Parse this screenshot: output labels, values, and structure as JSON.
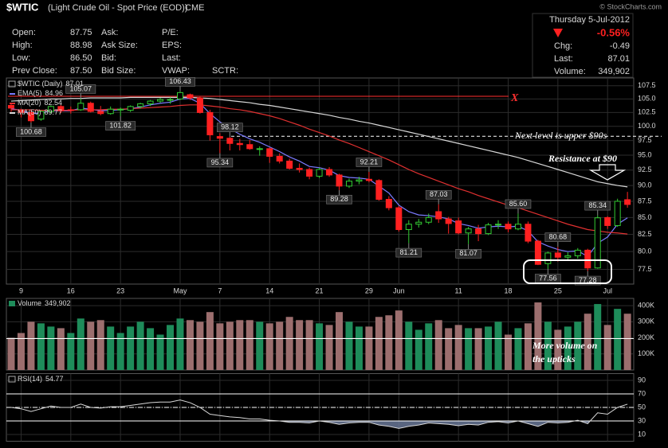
{
  "header": {
    "symbol": "$WTIC",
    "description": "(Light Crude Oil - Spot Price (EOD))",
    "exchange": "CME",
    "source": "© StockCharts.com",
    "date": "Thursday 5-Jul-2012",
    "quote": [
      [
        "Open:",
        "87.75"
      ],
      [
        "High:",
        "88.98"
      ],
      [
        "Low:",
        "86.50"
      ],
      [
        "Prev Close:",
        "87.50"
      ]
    ],
    "bid_ask": [
      "Ask:",
      "Ask Size:",
      "Bid:",
      "Bid Size:"
    ],
    "fundamentals": [
      "P/E:",
      "EPS:",
      "Last:",
      "VWAP:"
    ],
    "sctr": "SCTR:",
    "change_pct": "-0.56%",
    "change_label": "Chg:",
    "change": "-0.49",
    "last_label": "Last:",
    "last": "87.01",
    "volume_label": "Volume:",
    "volume": "349,902"
  },
  "chart_data": {
    "type": "candlestick",
    "categories": [
      "2012-04-05",
      "2012-04-09",
      "2012-04-10",
      "2012-04-11",
      "2012-04-12",
      "2012-04-13",
      "2012-04-16",
      "2012-04-17",
      "2012-04-18",
      "2012-04-19",
      "2012-04-20",
      "2012-04-23",
      "2012-04-24",
      "2012-04-25",
      "2012-04-26",
      "2012-04-27",
      "2012-04-30",
      "2012-05-01",
      "2012-05-02",
      "2012-05-03",
      "2012-05-04",
      "2012-05-07",
      "2012-05-08",
      "2012-05-09",
      "2012-05-10",
      "2012-05-11",
      "2012-05-14",
      "2012-05-15",
      "2012-05-16",
      "2012-05-17",
      "2012-05-18",
      "2012-05-21",
      "2012-05-22",
      "2012-05-23",
      "2012-05-24",
      "2012-05-25",
      "2012-05-29",
      "2012-05-30",
      "2012-05-31",
      "2012-06-01",
      "2012-06-04",
      "2012-06-05",
      "2012-06-06",
      "2012-06-07",
      "2012-06-08",
      "2012-06-11",
      "2012-06-12",
      "2012-06-13",
      "2012-06-14",
      "2012-06-15",
      "2012-06-18",
      "2012-06-19",
      "2012-06-20",
      "2012-06-21",
      "2012-06-22",
      "2012-06-25",
      "2012-06-26",
      "2012-06-27",
      "2012-06-28",
      "2012-06-29",
      "2012-07-02",
      "2012-07-03",
      "2012-07-05"
    ],
    "xticks": [
      {
        "value": "2012-04-09",
        "label": "9"
      },
      {
        "value": "2012-04-16",
        "label": "16"
      },
      {
        "value": "2012-04-23",
        "label": "23"
      },
      {
        "value": "2012-05-01",
        "label": "May"
      },
      {
        "value": "2012-05-07",
        "label": "7"
      },
      {
        "value": "2012-05-14",
        "label": "14"
      },
      {
        "value": "2012-05-21",
        "label": "21"
      },
      {
        "value": "2012-05-29",
        "label": "29"
      },
      {
        "value": "2012-06-01",
        "label": "Jun"
      },
      {
        "value": "2012-06-11",
        "label": "11"
      },
      {
        "value": "2012-06-18",
        "label": "18"
      },
      {
        "value": "2012-06-25",
        "label": "25"
      },
      {
        "value": "2012-07-02",
        "label": "Jul"
      }
    ],
    "price": {
      "type": "candlestick",
      "log": true,
      "grid": true,
      "ylim": [
        75.5,
        109.0
      ],
      "yticks": [
        107.5,
        {
          "value": 105,
          "label": "105.0"
        },
        102.5,
        {
          "value": 100,
          "label": "100.0"
        },
        97.5,
        {
          "value": 95,
          "label": "95.0"
        },
        92.5,
        {
          "value": 90,
          "label": "90.0"
        },
        87.5,
        {
          "value": 85,
          "label": "85.0"
        },
        82.5,
        {
          "value": 80,
          "label": "80.0"
        },
        77.5
      ],
      "ohlc": {
        "name": "$WTIC (Daily)",
        "last_label": "87.01",
        "up_color": "#33cc33",
        "down_color": "#ff2020",
        "open": [
          103.8,
          102.9,
          102.5,
          101.3,
          102.7,
          103.6,
          103.0,
          103.0,
          104.2,
          102.7,
          102.3,
          103.1,
          102.9,
          103.6,
          104.1,
          104.6,
          104.9,
          105.0,
          105.8,
          105.2,
          102.5,
          98.2,
          97.9,
          97.0,
          96.8,
          96.1,
          96.1,
          94.8,
          94.0,
          92.8,
          92.6,
          91.5,
          92.6,
          91.7,
          89.9,
          90.7,
          91.0,
          90.8,
          87.8,
          86.5,
          83.2,
          84.0,
          84.3,
          85.9,
          84.8,
          84.5,
          82.7,
          83.3,
          82.6,
          83.9,
          84.0,
          83.3,
          84.0,
          81.5,
          78.3,
          79.8,
          79.2,
          79.4,
          80.2,
          77.7,
          85.0,
          83.8,
          87.75
        ],
        "high": [
          104.0,
          103.2,
          102.9,
          102.9,
          103.8,
          103.9,
          103.6,
          105.07,
          104.5,
          103.7,
          103.6,
          103.4,
          103.8,
          104.3,
          104.8,
          105.2,
          105.3,
          106.43,
          106.0,
          105.4,
          103.0,
          98.8,
          98.12,
          97.8,
          97.6,
          96.5,
          96.3,
          95.3,
          94.4,
          93.6,
          92.9,
          92.9,
          93.0,
          91.9,
          91.1,
          91.4,
          92.21,
          91.0,
          88.3,
          86.8,
          84.6,
          84.8,
          85.6,
          87.03,
          85.1,
          85.0,
          83.6,
          83.9,
          84.2,
          84.6,
          84.4,
          85.6,
          84.4,
          81.7,
          80.0,
          80.68,
          79.9,
          80.5,
          80.4,
          85.34,
          85.2,
          87.9,
          88.98
        ],
        "low": [
          102.6,
          101.6,
          100.68,
          101.0,
          102.3,
          102.4,
          102.3,
          102.8,
          102.5,
          102.0,
          102.1,
          101.82,
          102.6,
          103.2,
          103.7,
          104.3,
          104.1,
          104.8,
          104.8,
          102.3,
          97.5,
          95.34,
          95.8,
          95.8,
          95.9,
          94.9,
          93.7,
          93.6,
          92.6,
          92.1,
          91.0,
          91.2,
          91.4,
          89.28,
          89.6,
          90.2,
          90.5,
          87.6,
          86.1,
          82.9,
          81.21,
          83.5,
          84.0,
          84.2,
          82.6,
          82.5,
          81.07,
          81.5,
          82.4,
          83.3,
          82.8,
          83.1,
          81.2,
          78.1,
          77.56,
          78.6,
          78.8,
          79.0,
          77.28,
          77.6,
          83.3,
          83.6,
          86.5
        ],
        "close": [
          103.3,
          102.5,
          101.0,
          102.7,
          103.6,
          102.8,
          102.9,
          104.2,
          102.7,
          102.3,
          103.1,
          103.1,
          103.6,
          104.1,
          104.6,
          104.9,
          104.9,
          106.2,
          105.2,
          102.5,
          98.5,
          97.9,
          97.0,
          96.8,
          96.1,
          96.1,
          94.8,
          94.0,
          92.8,
          92.6,
          91.5,
          92.6,
          91.7,
          89.9,
          90.7,
          90.9,
          90.8,
          87.8,
          86.5,
          83.2,
          84.0,
          84.3,
          85.0,
          84.8,
          84.1,
          82.7,
          83.3,
          82.6,
          83.9,
          84.0,
          83.3,
          84.0,
          81.5,
          78.2,
          79.8,
          79.2,
          79.4,
          80.2,
          77.7,
          84.96,
          83.8,
          87.5,
          87.01
        ]
      },
      "series": [
        {
          "name": "EMA(5)",
          "last_label": "84.96",
          "color": "#7b7bff",
          "values": [
            103.2,
            102.9,
            102.3,
            102.4,
            102.8,
            102.8,
            102.8,
            103.3,
            103.1,
            102.8,
            102.9,
            103.0,
            103.2,
            103.5,
            103.9,
            104.2,
            104.4,
            105.0,
            105.1,
            104.2,
            102.3,
            100.8,
            99.6,
            98.6,
            97.8,
            97.2,
            96.4,
            95.6,
            94.7,
            94.0,
            93.1,
            92.9,
            92.5,
            91.6,
            91.3,
            91.2,
            91.0,
            89.9,
            88.8,
            86.9,
            85.9,
            85.4,
            85.3,
            85.1,
            84.8,
            84.1,
            83.8,
            83.4,
            83.6,
            83.7,
            83.6,
            83.7,
            83.0,
            81.4,
            80.8,
            80.3,
            80.0,
            80.1,
            79.3,
            81.2,
            82.1,
            84.0,
            84.96
          ]
        },
        {
          "name": "MA(20)",
          "last_label": "82.54",
          "color": "#e03030",
          "values": [
            103.0,
            103.0,
            103.0,
            102.9,
            102.9,
            102.9,
            102.9,
            103.0,
            103.0,
            103.0,
            103.1,
            103.1,
            103.2,
            103.3,
            103.4,
            103.5,
            103.6,
            103.8,
            103.9,
            103.9,
            103.7,
            103.5,
            103.2,
            103.0,
            102.7,
            102.3,
            101.9,
            101.4,
            100.8,
            100.2,
            99.5,
            98.9,
            98.3,
            97.6,
            97.0,
            96.3,
            95.6,
            94.9,
            94.2,
            93.4,
            92.6,
            91.9,
            91.3,
            90.7,
            90.1,
            89.5,
            89.0,
            88.4,
            87.9,
            87.4,
            86.9,
            86.5,
            86.0,
            85.5,
            85.0,
            84.5,
            84.0,
            83.6,
            83.2,
            83.0,
            82.8,
            82.7,
            82.54
          ]
        },
        {
          "name": "MA(50)",
          "last_label": "89.77",
          "color": "#d8d8d8",
          "values": [
            104.6,
            104.7,
            104.8,
            104.9,
            105.0,
            105.0,
            105.1,
            105.1,
            105.2,
            105.2,
            105.2,
            105.2,
            105.3,
            105.3,
            105.3,
            105.3,
            105.3,
            105.3,
            105.3,
            105.2,
            105.1,
            104.9,
            104.7,
            104.5,
            104.3,
            104.0,
            103.8,
            103.5,
            103.2,
            102.9,
            102.6,
            102.3,
            102.0,
            101.6,
            101.3,
            100.9,
            100.6,
            100.2,
            99.8,
            99.4,
            99.0,
            98.6,
            98.2,
            97.8,
            97.4,
            97.0,
            96.6,
            96.2,
            95.8,
            95.4,
            95.0,
            94.6,
            94.1,
            93.6,
            93.1,
            92.6,
            92.1,
            91.6,
            91.1,
            90.6,
            90.3,
            90.0,
            89.77
          ]
        }
      ],
      "labels": [
        {
          "value": 105.07,
          "label": "105.07",
          "x": "2012-04-17"
        },
        {
          "value": 100.68,
          "label": "100.68",
          "x": "2012-04-10"
        },
        {
          "value": 101.82,
          "label": "101.82",
          "x": "2012-04-23"
        },
        {
          "value": 106.43,
          "label": "106.43",
          "x": "2012-05-01"
        },
        {
          "value": 98.12,
          "label": "98.12",
          "x": "2012-05-08"
        },
        {
          "value": 95.34,
          "label": "95.34",
          "x": "2012-05-07"
        },
        {
          "value": 92.21,
          "label": "92.21",
          "x": "2012-05-29"
        },
        {
          "value": 89.28,
          "label": "89.28",
          "x": "2012-05-23"
        },
        {
          "value": 87.03,
          "label": "87.03",
          "x": "2012-06-07"
        },
        {
          "value": 81.21,
          "label": "81.21",
          "x": "2012-06-04"
        },
        {
          "value": 85.6,
          "label": "85.60",
          "x": "2012-06-19"
        },
        {
          "value": 81.07,
          "label": "81.07",
          "x": "2012-06-12"
        },
        {
          "value": 80.68,
          "label": "80.68",
          "x": "2012-06-25"
        },
        {
          "value": 77.56,
          "label": "77.56",
          "x": "2012-06-22"
        },
        {
          "value": 85.34,
          "label": "85.34",
          "x": "2012-06-29"
        },
        {
          "value": 77.28,
          "label": "77.28",
          "x": "2012-06-28"
        }
      ],
      "levels": [
        {
          "value": 105.5,
          "color": "#ff3030"
        },
        {
          "value": 98.25,
          "color": "#ffffff",
          "dash": true
        }
      ],
      "annotations": {
        "x_mark": "X",
        "next_level": "Next level is upper $90s",
        "resistance": "Resistance at $90"
      }
    },
    "volume": {
      "type": "bar",
      "name": "Volume",
      "last_label": "349,902",
      "up_color": "#1e8c5a",
      "down_color": "#9c6e6e",
      "grid": true,
      "ylim": [
        0,
        445000
      ],
      "yticks": [
        {
          "value": 100000,
          "label": "100K"
        },
        {
          "value": 200000,
          "label": "200K"
        },
        {
          "value": 300000,
          "label": "300K"
        },
        {
          "value": 400000,
          "label": "400K"
        }
      ],
      "values": [
        200000,
        230000,
        300000,
        290000,
        270000,
        260000,
        230000,
        320000,
        300000,
        310000,
        270000,
        230000,
        270000,
        300000,
        260000,
        220000,
        280000,
        320000,
        310000,
        300000,
        360000,
        290000,
        300000,
        310000,
        310000,
        300000,
        290000,
        300000,
        330000,
        310000,
        310000,
        290000,
        280000,
        360000,
        300000,
        270000,
        270000,
        330000,
        340000,
        370000,
        300000,
        250000,
        290000,
        310000,
        260000,
        280000,
        260000,
        260000,
        270000,
        300000,
        220000,
        260000,
        290000,
        420000,
        300000,
        250000,
        270000,
        300000,
        350000,
        410000,
        280000,
        380000,
        349902
      ],
      "levels": [
        {
          "value": 195000,
          "color": "#ffffff"
        }
      ],
      "annotation": [
        "More volume on",
        "the upticks"
      ]
    },
    "rsi": {
      "type": "line",
      "name": "RSI(14)",
      "last_label": "54.77",
      "color": "#d8d8d8",
      "fill_color": "#6f7ea0",
      "grid": true,
      "ylim": [
        0,
        100
      ],
      "yticks": [
        90,
        70,
        50,
        30,
        10
      ],
      "values": [
        50,
        48,
        44,
        48,
        52,
        50,
        50,
        55,
        50,
        49,
        51,
        51,
        53,
        55,
        57,
        58,
        58,
        61,
        57,
        50,
        40,
        38,
        36,
        35,
        33,
        33,
        31,
        30,
        28,
        28,
        27,
        30,
        28,
        25,
        27,
        28,
        28,
        24,
        22,
        19,
        22,
        24,
        27,
        26,
        25,
        23,
        25,
        24,
        28,
        29,
        27,
        30,
        26,
        22,
        28,
        27,
        28,
        31,
        26,
        42,
        40,
        50,
        54.77
      ],
      "levels": [
        {
          "value": 70,
          "color": "#ffffff"
        },
        {
          "value": 50,
          "color": "#ffffff",
          "dash": true
        },
        {
          "value": 30,
          "color": "#ffffff"
        }
      ]
    }
  }
}
